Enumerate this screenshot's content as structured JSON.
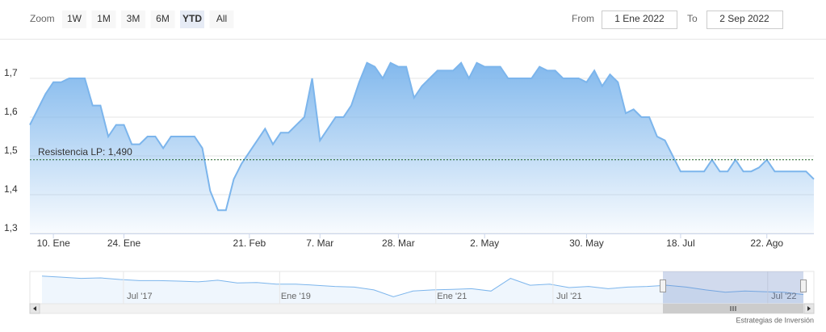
{
  "range_selector": {
    "label": "Zoom",
    "buttons": [
      "1W",
      "1M",
      "3M",
      "6M",
      "YTD",
      "All"
    ],
    "selected": 4,
    "from_label": "From",
    "from": "1 Ene 2022",
    "to_label": "To",
    "to": "2 Sep 2022"
  },
  "chart_data": {
    "type": "area",
    "color": "#7cb5ec",
    "categories": [
      null,
      null,
      null,
      "10. Ene",
      null,
      null,
      null,
      null,
      null,
      null,
      null,
      null,
      "24. Ene",
      null,
      null,
      null,
      null,
      null,
      null,
      null,
      null,
      null,
      null,
      null,
      null,
      null,
      null,
      null,
      "21. Feb",
      null,
      null,
      null,
      null,
      null,
      null,
      null,
      null,
      "7. Mar",
      null,
      null,
      null,
      null,
      null,
      null,
      null,
      null,
      null,
      "28. Mar",
      null,
      null,
      null,
      null,
      null,
      null,
      null,
      null,
      null,
      null,
      "2. May",
      null,
      null,
      null,
      null,
      null,
      null,
      null,
      null,
      null,
      null,
      null,
      null,
      "30. May",
      null,
      null,
      null,
      null,
      null,
      null,
      null,
      null,
      null,
      null,
      null,
      "18. Jul",
      null,
      null,
      null,
      null,
      null,
      null,
      null,
      null,
      null,
      null,
      "22. Ago",
      null,
      null,
      null,
      null,
      null,
      null
    ],
    "values": [
      1.58,
      1.62,
      1.66,
      1.69,
      1.69,
      1.7,
      1.7,
      1.7,
      1.63,
      1.63,
      1.55,
      1.58,
      1.58,
      1.53,
      1.53,
      1.55,
      1.55,
      1.52,
      1.55,
      1.55,
      1.55,
      1.55,
      1.52,
      1.41,
      1.36,
      1.36,
      1.44,
      1.48,
      1.51,
      1.54,
      1.57,
      1.53,
      1.56,
      1.56,
      1.58,
      1.6,
      1.7,
      1.54,
      1.57,
      1.6,
      1.6,
      1.63,
      1.69,
      1.74,
      1.73,
      1.7,
      1.74,
      1.73,
      1.73,
      1.65,
      1.68,
      1.7,
      1.72,
      1.72,
      1.72,
      1.74,
      1.7,
      1.74,
      1.73,
      1.73,
      1.73,
      1.7,
      1.7,
      1.7,
      1.7,
      1.73,
      1.72,
      1.72,
      1.7,
      1.7,
      1.7,
      1.69,
      1.72,
      1.68,
      1.71,
      1.69,
      1.61,
      1.62,
      1.6,
      1.6,
      1.55,
      1.54,
      1.5,
      1.46,
      1.46,
      1.46,
      1.46,
      1.49,
      1.46,
      1.46,
      1.49,
      1.46,
      1.46,
      1.47,
      1.49,
      1.46,
      1.46,
      1.46,
      1.46,
      1.46,
      1.44
    ],
    "ylim": [
      1.3,
      1.8
    ],
    "yticks": [
      {
        "value": 1.3,
        "label": "1,3"
      },
      {
        "value": 1.4,
        "label": "1,4"
      },
      {
        "value": 1.5,
        "label": "1,5"
      },
      {
        "value": 1.6,
        "label": "1,6"
      },
      {
        "value": 1.7,
        "label": "1,7"
      }
    ],
    "grid": true,
    "annotations": [
      {
        "label": "Resistencia LP: 1,490",
        "value": 1.49,
        "color": "#1b5e20"
      }
    ]
  },
  "navigator": {
    "categories": [
      null,
      null,
      null,
      null,
      null,
      "Jul '17",
      null,
      null,
      null,
      null,
      null,
      null,
      null,
      "Ene '19",
      null,
      null,
      null,
      null,
      null,
      null,
      null,
      "Ene '21",
      null,
      null,
      null,
      null,
      null,
      "Jul '21",
      null,
      null,
      null,
      null,
      null,
      null,
      null,
      null,
      null,
      null,
      "Jul '22",
      null
    ],
    "values": [
      2.2,
      2.15,
      2.1,
      2.12,
      2.05,
      2.0,
      2.0,
      1.98,
      1.95,
      2.02,
      1.9,
      1.92,
      1.85,
      1.85,
      1.8,
      1.75,
      1.72,
      1.6,
      1.3,
      1.55,
      1.6,
      1.62,
      1.65,
      1.55,
      2.1,
      1.8,
      1.85,
      1.7,
      1.75,
      1.65,
      1.72,
      1.75,
      1.8,
      1.72,
      1.6,
      1.5,
      1.55,
      1.52,
      1.5,
      1.4
    ],
    "ylim": [
      1.0,
      2.4
    ]
  },
  "credits": "Estrategias de Inversión"
}
